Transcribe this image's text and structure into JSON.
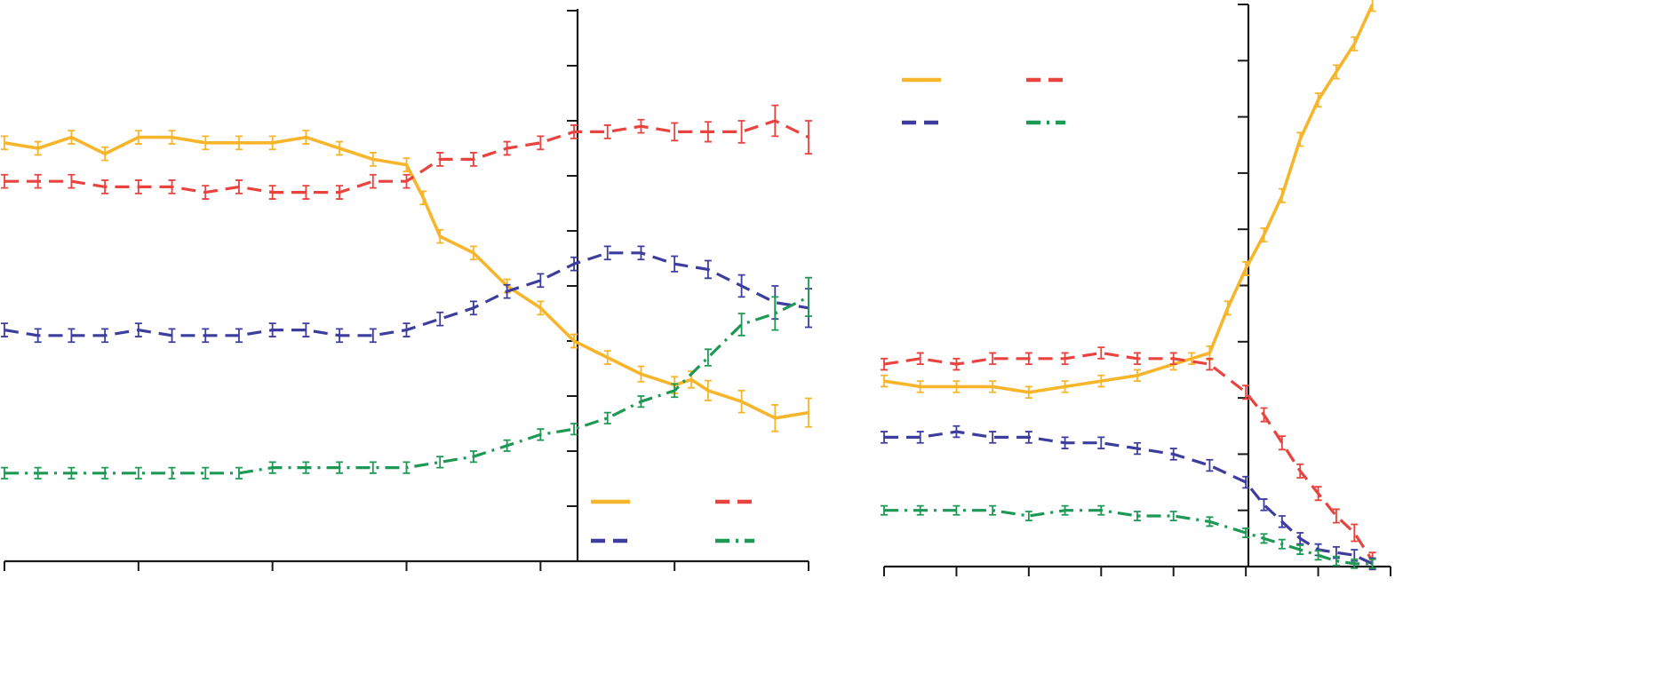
{
  "chart_data": [
    {
      "type": "line",
      "title": "",
      "xlabel": "",
      "ylabel": "",
      "xlim": [
        -10,
        2
      ],
      "ylim": [
        0,
        10
      ],
      "x_ticks": [
        -10,
        -8,
        -6,
        -4,
        -2,
        0,
        2
      ],
      "y_ticks": [
        1,
        2,
        3,
        4,
        5,
        6,
        7,
        8,
        9,
        10
      ],
      "grid": false,
      "error_bars": true,
      "legend": {
        "placement": "bottom-right",
        "columns": 2
      },
      "series": [
        {
          "color": "#F7B52C",
          "line_style": "solid",
          "x": [
            -10,
            -9.5,
            -9,
            -8.5,
            -8,
            -7.5,
            -7,
            -6.5,
            -6,
            -5.5,
            -5,
            -4.5,
            -4,
            -3.75,
            -3.5,
            -3,
            -2.5,
            -2,
            -1.5,
            -1,
            -0.5,
            0,
            0.25,
            0.5,
            1,
            1.5,
            2
          ],
          "values": [
            7.6,
            7.5,
            7.7,
            7.4,
            7.7,
            7.7,
            7.6,
            7.6,
            7.6,
            7.7,
            7.5,
            7.3,
            7.2,
            6.6,
            5.9,
            5.6,
            5.0,
            4.6,
            4.0,
            3.7,
            3.4,
            3.2,
            3.3,
            3.1,
            2.9,
            2.6,
            2.7
          ],
          "error": [
            0.12,
            0.12,
            0.12,
            0.12,
            0.12,
            0.12,
            0.12,
            0.12,
            0.12,
            0.12,
            0.12,
            0.12,
            0.12,
            0.12,
            0.12,
            0.12,
            0.12,
            0.12,
            0.12,
            0.12,
            0.14,
            0.15,
            0.15,
            0.18,
            0.2,
            0.24,
            0.26
          ]
        },
        {
          "color": "#E8433F",
          "line_style": "dashed",
          "x": [
            -10,
            -9.5,
            -9,
            -8.5,
            -8,
            -7.5,
            -7,
            -6.5,
            -6,
            -5.5,
            -5,
            -4.5,
            -4,
            -3.5,
            -3,
            -2.5,
            -2,
            -1.5,
            -1,
            -0.5,
            0,
            0.5,
            1,
            1.5,
            2
          ],
          "values": [
            6.9,
            6.9,
            6.9,
            6.8,
            6.8,
            6.8,
            6.7,
            6.8,
            6.7,
            6.7,
            6.7,
            6.9,
            6.9,
            7.3,
            7.3,
            7.5,
            7.6,
            7.8,
            7.8,
            7.9,
            7.8,
            7.8,
            7.8,
            8.0,
            7.7
          ],
          "error": [
            0.12,
            0.12,
            0.12,
            0.12,
            0.12,
            0.12,
            0.12,
            0.12,
            0.12,
            0.12,
            0.12,
            0.12,
            0.12,
            0.12,
            0.12,
            0.12,
            0.12,
            0.12,
            0.12,
            0.12,
            0.16,
            0.18,
            0.2,
            0.28,
            0.3
          ]
        },
        {
          "color": "#3D3D9E",
          "line_style": "dashed",
          "x": [
            -10,
            -9.5,
            -9,
            -8.5,
            -8,
            -7.5,
            -7,
            -6.5,
            -6,
            -5.5,
            -5,
            -4.5,
            -4,
            -3.5,
            -3,
            -2.5,
            -2,
            -1.5,
            -1,
            -0.5,
            0,
            0.5,
            1,
            1.5,
            2
          ],
          "values": [
            4.2,
            4.1,
            4.1,
            4.1,
            4.2,
            4.1,
            4.1,
            4.1,
            4.2,
            4.2,
            4.1,
            4.1,
            4.2,
            4.4,
            4.6,
            4.9,
            5.1,
            5.4,
            5.6,
            5.6,
            5.4,
            5.3,
            5.0,
            4.7,
            4.6
          ],
          "error": [
            0.12,
            0.12,
            0.12,
            0.12,
            0.12,
            0.12,
            0.12,
            0.12,
            0.12,
            0.12,
            0.12,
            0.12,
            0.12,
            0.12,
            0.12,
            0.12,
            0.12,
            0.12,
            0.12,
            0.12,
            0.14,
            0.16,
            0.2,
            0.3,
            0.35
          ]
        },
        {
          "color": "#1E9955",
          "line_style": "dash-dot",
          "x": [
            -10,
            -9.5,
            -9,
            -8.5,
            -8,
            -7.5,
            -7,
            -6.5,
            -6,
            -5.5,
            -5,
            -4.5,
            -4,
            -3.5,
            -3,
            -2.5,
            -2,
            -1.5,
            -1,
            -0.5,
            0,
            0.5,
            1,
            1.5,
            2
          ],
          "values": [
            1.6,
            1.6,
            1.6,
            1.6,
            1.6,
            1.6,
            1.6,
            1.6,
            1.7,
            1.7,
            1.7,
            1.7,
            1.7,
            1.8,
            1.9,
            2.1,
            2.3,
            2.4,
            2.6,
            2.9,
            3.1,
            3.7,
            4.3,
            4.5,
            4.8
          ],
          "error": [
            0.1,
            0.1,
            0.1,
            0.1,
            0.1,
            0.1,
            0.1,
            0.1,
            0.1,
            0.1,
            0.1,
            0.1,
            0.1,
            0.1,
            0.1,
            0.1,
            0.1,
            0.1,
            0.1,
            0.1,
            0.12,
            0.15,
            0.2,
            0.3,
            0.35
          ]
        }
      ]
    },
    {
      "type": "line",
      "title": "",
      "xlabel": "",
      "ylabel": "",
      "xlim": [
        -5,
        2
      ],
      "ylim": [
        0,
        10
      ],
      "x_ticks": [
        -5,
        -4,
        -3,
        -2,
        -1,
        0,
        1,
        2
      ],
      "y_ticks": [
        1,
        2,
        3,
        4,
        5,
        6,
        7,
        8,
        9,
        10
      ],
      "grid": false,
      "error_bars": true,
      "legend": {
        "placement": "top-left",
        "columns": 2
      },
      "series": [
        {
          "color": "#F7B52C",
          "line_style": "solid",
          "x": [
            -5,
            -4.5,
            -4,
            -3.5,
            -3,
            -2.5,
            -2,
            -1.5,
            -1,
            -0.75,
            -0.5,
            -0.25,
            0,
            0.25,
            0.5,
            0.75,
            1,
            1.25,
            1.5,
            1.75
          ],
          "values": [
            3.3,
            3.2,
            3.2,
            3.2,
            3.1,
            3.2,
            3.3,
            3.4,
            3.6,
            3.7,
            3.8,
            4.6,
            5.3,
            5.9,
            6.6,
            7.6,
            8.3,
            8.8,
            9.3,
            10.0
          ],
          "error": [
            0.1,
            0.1,
            0.1,
            0.1,
            0.1,
            0.1,
            0.1,
            0.1,
            0.1,
            0.1,
            0.12,
            0.12,
            0.12,
            0.12,
            0.12,
            0.12,
            0.12,
            0.12,
            0.12,
            0.12
          ]
        },
        {
          "color": "#E8433F",
          "line_style": "dashed",
          "x": [
            -5,
            -4.5,
            -4,
            -3.5,
            -3,
            -2.5,
            -2,
            -1.5,
            -1,
            -0.5,
            0,
            0.25,
            0.5,
            0.75,
            1,
            1.25,
            1.5,
            1.75
          ],
          "values": [
            3.6,
            3.7,
            3.6,
            3.7,
            3.7,
            3.7,
            3.8,
            3.7,
            3.7,
            3.6,
            3.1,
            2.7,
            2.2,
            1.7,
            1.3,
            0.9,
            0.6,
            0.1
          ],
          "error": [
            0.1,
            0.1,
            0.1,
            0.1,
            0.1,
            0.1,
            0.1,
            0.1,
            0.1,
            0.1,
            0.12,
            0.12,
            0.12,
            0.12,
            0.12,
            0.12,
            0.15,
            0.15
          ]
        },
        {
          "color": "#3D3D9E",
          "line_style": "dashed",
          "x": [
            -5,
            -4.5,
            -4,
            -3.5,
            -3,
            -2.5,
            -2,
            -1.5,
            -1,
            -0.5,
            0,
            0.25,
            0.5,
            0.75,
            1,
            1.25,
            1.5,
            1.75
          ],
          "values": [
            2.3,
            2.3,
            2.4,
            2.3,
            2.3,
            2.2,
            2.2,
            2.1,
            2.0,
            1.8,
            1.5,
            1.1,
            0.8,
            0.5,
            0.3,
            0.25,
            0.2,
            0.05
          ],
          "error": [
            0.1,
            0.1,
            0.1,
            0.1,
            0.1,
            0.1,
            0.1,
            0.1,
            0.1,
            0.1,
            0.1,
            0.1,
            0.1,
            0.1,
            0.1,
            0.1,
            0.1,
            0.1
          ]
        },
        {
          "color": "#1E9955",
          "line_style": "dash-dot",
          "x": [
            -5,
            -4.5,
            -4,
            -3.5,
            -3,
            -2.5,
            -2,
            -1.5,
            -1,
            -0.5,
            0,
            0.25,
            0.5,
            0.75,
            1,
            1.25,
            1.5,
            1.75
          ],
          "values": [
            1.0,
            1.0,
            1.0,
            1.0,
            0.9,
            1.0,
            1.0,
            0.9,
            0.9,
            0.8,
            0.6,
            0.5,
            0.4,
            0.3,
            0.2,
            0.1,
            0.05,
            0.05
          ],
          "error": [
            0.08,
            0.08,
            0.08,
            0.08,
            0.08,
            0.08,
            0.08,
            0.08,
            0.08,
            0.08,
            0.08,
            0.08,
            0.08,
            0.08,
            0.08,
            0.08,
            0.08,
            0.08
          ]
        }
      ]
    }
  ]
}
